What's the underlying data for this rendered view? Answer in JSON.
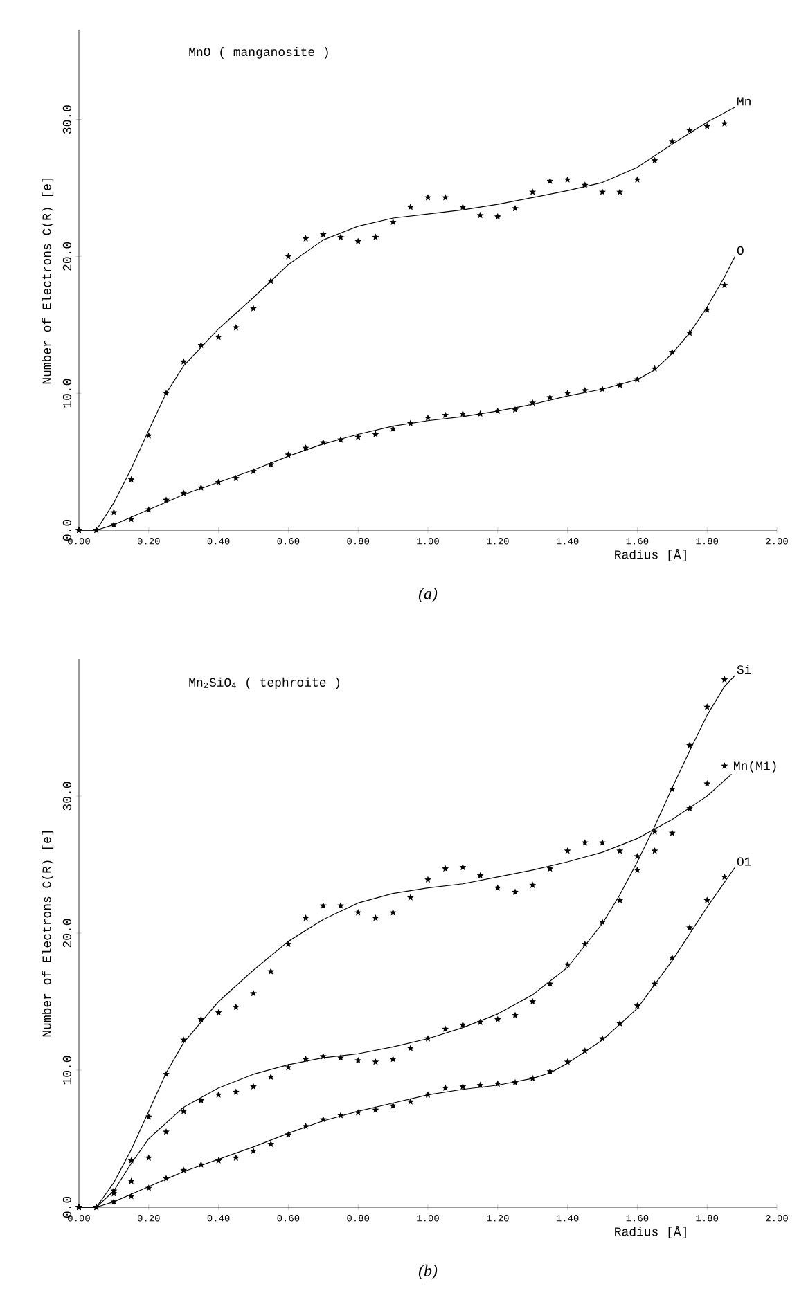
{
  "chart_data": [
    {
      "type": "line",
      "title": "MnO ( manganosite )",
      "xlabel": "Radius [Å]",
      "ylabel": "Number of Electrons C(R) [e]",
      "annotations": [
        "(a)"
      ],
      "xlim": [
        0,
        2
      ],
      "ylim": [
        0,
        36.5
      ],
      "xticks": [
        {
          "value": 0,
          "label": "0.00"
        },
        {
          "value": 0.2,
          "label": "0.20"
        },
        {
          "value": 0.4,
          "label": "0.40"
        },
        {
          "value": 0.6,
          "label": "0.60"
        },
        {
          "value": 0.8,
          "label": "0.80"
        },
        {
          "value": 1.0,
          "label": "1.00"
        },
        {
          "value": 1.2,
          "label": "1.20"
        },
        {
          "value": 1.4,
          "label": "1.40"
        },
        {
          "value": 1.6,
          "label": "1.60"
        },
        {
          "value": 1.8,
          "label": "1.80"
        },
        {
          "value": 2.0,
          "label": "2.00"
        }
      ],
      "yticks": [
        {
          "value": 0,
          "label": "0.0"
        },
        {
          "value": 10,
          "label": "10.0"
        },
        {
          "value": 20,
          "label": "20.0"
        },
        {
          "value": 30,
          "label": "30.0"
        }
      ],
      "marker": "star",
      "series": [
        {
          "name": "Mn",
          "marker": "none",
          "color": "#000000",
          "x": [
            0,
            0.05,
            0.1,
            0.15,
            0.2,
            0.25,
            0.3,
            0.4,
            0.5,
            0.6,
            0.7,
            0.8,
            0.9,
            1.0,
            1.1,
            1.2,
            1.3,
            1.4,
            1.5,
            1.6,
            1.7,
            1.8,
            1.88
          ],
          "values": [
            0,
            0,
            2,
            4.5,
            7.3,
            10,
            12,
            14.7,
            17,
            19.4,
            21.2,
            22.2,
            22.8,
            23.1,
            23.4,
            23.8,
            24.3,
            24.8,
            25.4,
            26.5,
            28.2,
            29.8,
            30.9
          ]
        },
        {
          "type": "scatter",
          "color": "#000000",
          "x": [
            0,
            0.05,
            0.1,
            0.15,
            0.2,
            0.25,
            0.3,
            0.35,
            0.4,
            0.45,
            0.5,
            0.55,
            0.6,
            0.65,
            0.7,
            0.75,
            0.8,
            0.85,
            0.9,
            0.95,
            1.0,
            1.05,
            1.1,
            1.15,
            1.2,
            1.25,
            1.3,
            1.35,
            1.4,
            1.45,
            1.5,
            1.55,
            1.6,
            1.65,
            1.7,
            1.75,
            1.8,
            1.85
          ],
          "values": [
            0,
            0,
            1.3,
            3.7,
            6.9,
            10.0,
            12.3,
            13.5,
            14.1,
            14.8,
            16.2,
            18.2,
            20.0,
            21.3,
            21.6,
            21.4,
            21.1,
            21.4,
            22.5,
            23.6,
            24.3,
            24.3,
            23.6,
            23.0,
            22.9,
            23.5,
            24.7,
            25.5,
            25.6,
            25.2,
            24.7,
            24.7,
            25.6,
            27.0,
            28.4,
            29.2,
            29.5,
            29.7
          ]
        },
        {
          "name": "O",
          "marker": "none",
          "color": "#000000",
          "x": [
            0,
            0.05,
            0.1,
            0.2,
            0.3,
            0.4,
            0.5,
            0.6,
            0.7,
            0.8,
            0.9,
            1.0,
            1.1,
            1.2,
            1.3,
            1.4,
            1.5,
            1.6,
            1.65,
            1.7,
            1.75,
            1.8,
            1.85,
            1.88
          ],
          "values": [
            0,
            0,
            0.4,
            1.5,
            2.6,
            3.5,
            4.4,
            5.4,
            6.3,
            7.0,
            7.6,
            8.0,
            8.3,
            8.7,
            9.2,
            9.8,
            10.3,
            11.0,
            11.7,
            12.9,
            14.4,
            16.3,
            18.5,
            20.0
          ]
        },
        {
          "type": "scatter",
          "color": "#000000",
          "x": [
            0,
            0.05,
            0.1,
            0.15,
            0.2,
            0.25,
            0.3,
            0.35,
            0.4,
            0.45,
            0.5,
            0.55,
            0.6,
            0.65,
            0.7,
            0.75,
            0.8,
            0.85,
            0.9,
            0.95,
            1.0,
            1.05,
            1.1,
            1.15,
            1.2,
            1.25,
            1.3,
            1.35,
            1.4,
            1.45,
            1.5,
            1.55,
            1.6,
            1.65,
            1.7,
            1.75,
            1.8,
            1.85
          ],
          "values": [
            0,
            0,
            0.4,
            0.8,
            1.5,
            2.2,
            2.7,
            3.1,
            3.5,
            3.8,
            4.3,
            4.8,
            5.5,
            6.0,
            6.4,
            6.6,
            6.8,
            7.0,
            7.4,
            7.8,
            8.2,
            8.4,
            8.5,
            8.5,
            8.7,
            8.8,
            9.3,
            9.7,
            10.0,
            10.2,
            10.3,
            10.6,
            11.0,
            11.8,
            13.0,
            14.4,
            16.1,
            17.9
          ]
        }
      ]
    },
    {
      "type": "line",
      "title": "Mn$_{2}$SiO$_{4}$ ( tephroite )",
      "xlabel": "Radius [Å]",
      "ylabel": "Number of Electrons C(R) [e]",
      "annotations": [
        "(b)"
      ],
      "xlim": [
        0,
        2
      ],
      "ylim": [
        0,
        40
      ],
      "xticks": [
        {
          "value": 0,
          "label": "0.00"
        },
        {
          "value": 0.2,
          "label": "0.20"
        },
        {
          "value": 0.4,
          "label": "0.40"
        },
        {
          "value": 0.6,
          "label": "0.60"
        },
        {
          "value": 0.8,
          "label": "0.80"
        },
        {
          "value": 1.0,
          "label": "1.00"
        },
        {
          "value": 1.2,
          "label": "1.20"
        },
        {
          "value": 1.4,
          "label": "1.40"
        },
        {
          "value": 1.6,
          "label": "1.60"
        },
        {
          "value": 1.8,
          "label": "1.80"
        },
        {
          "value": 2.0,
          "label": "2.00"
        }
      ],
      "yticks": [
        {
          "value": 0,
          "label": "0.0"
        },
        {
          "value": 10,
          "label": "10.0"
        },
        {
          "value": 20,
          "label": "20.0"
        },
        {
          "value": 30,
          "label": "30.0"
        }
      ],
      "marker": "star",
      "series": [
        {
          "name": "Si",
          "marker": "none",
          "color": "#000000",
          "x": [
            0,
            0.05,
            0.1,
            0.15,
            0.2,
            0.3,
            0.4,
            0.5,
            0.6,
            0.7,
            0.8,
            0.9,
            1.0,
            1.1,
            1.2,
            1.3,
            1.4,
            1.5,
            1.55,
            1.6,
            1.65,
            1.7,
            1.75,
            1.8,
            1.85,
            1.88
          ],
          "values": [
            0,
            0,
            1.2,
            3.2,
            5.0,
            7.3,
            8.7,
            9.7,
            10.4,
            10.9,
            11.2,
            11.7,
            12.3,
            13.1,
            14.1,
            15.5,
            17.5,
            20.7,
            22.8,
            25.2,
            27.8,
            30.6,
            33.3,
            35.9,
            38.0,
            38.8
          ]
        },
        {
          "type": "scatter",
          "color": "#000000",
          "x": [
            0,
            0.05,
            0.1,
            0.15,
            0.2,
            0.25,
            0.3,
            0.35,
            0.4,
            0.45,
            0.5,
            0.55,
            0.6,
            0.65,
            0.7,
            0.75,
            0.8,
            0.85,
            0.9,
            0.95,
            1.0,
            1.05,
            1.1,
            1.15,
            1.2,
            1.25,
            1.3,
            1.35,
            1.4,
            1.45,
            1.5,
            1.55,
            1.6,
            1.65,
            1.7,
            1.75,
            1.8,
            1.85
          ],
          "values": [
            0,
            0,
            1.0,
            1.9,
            3.6,
            5.5,
            7.0,
            7.8,
            8.2,
            8.4,
            8.8,
            9.5,
            10.2,
            10.8,
            11.0,
            10.9,
            10.7,
            10.6,
            10.8,
            11.6,
            12.3,
            13.0,
            13.3,
            13.5,
            13.7,
            14.0,
            15.0,
            16.3,
            17.7,
            19.2,
            20.8,
            22.4,
            24.6,
            27.4,
            30.5,
            33.7,
            36.5,
            38.5
          ]
        },
        {
          "name": "Mn(M1)",
          "marker": "none",
          "color": "#000000",
          "x": [
            0,
            0.05,
            0.1,
            0.15,
            0.2,
            0.25,
            0.3,
            0.4,
            0.5,
            0.6,
            0.7,
            0.8,
            0.9,
            1.0,
            1.1,
            1.2,
            1.3,
            1.4,
            1.5,
            1.6,
            1.7,
            1.8,
            1.87
          ],
          "values": [
            0,
            0,
            1.8,
            4.2,
            7,
            9.8,
            12,
            15,
            17.3,
            19.4,
            21,
            22.2,
            22.9,
            23.3,
            23.6,
            24.1,
            24.6,
            25.2,
            25.9,
            26.9,
            28.3,
            30.0,
            31.6
          ]
        },
        {
          "type": "scatter",
          "color": "#000000",
          "x": [
            0,
            0.05,
            0.1,
            0.15,
            0.2,
            0.25,
            0.3,
            0.35,
            0.4,
            0.45,
            0.5,
            0.55,
            0.6,
            0.65,
            0.7,
            0.75,
            0.8,
            0.85,
            0.9,
            0.95,
            1.0,
            1.05,
            1.1,
            1.15,
            1.2,
            1.25,
            1.3,
            1.35,
            1.4,
            1.45,
            1.5,
            1.55,
            1.6,
            1.65,
            1.7,
            1.75,
            1.8,
            1.85
          ],
          "values": [
            0,
            0,
            1.2,
            3.4,
            6.6,
            9.7,
            12.2,
            13.7,
            14.2,
            14.6,
            15.6,
            17.2,
            19.2,
            21.1,
            22.0,
            22.0,
            21.5,
            21.1,
            21.5,
            22.6,
            23.9,
            24.7,
            24.8,
            24.2,
            23.3,
            23.0,
            23.5,
            24.7,
            26.0,
            26.6,
            26.6,
            26.0,
            25.6,
            26.0,
            27.3,
            29.1,
            30.9,
            32.2
          ]
        },
        {
          "name": "O1",
          "marker": "none",
          "color": "#000000",
          "x": [
            0,
            0.05,
            0.1,
            0.2,
            0.3,
            0.4,
            0.5,
            0.6,
            0.7,
            0.8,
            0.9,
            1.0,
            1.1,
            1.2,
            1.3,
            1.35,
            1.4,
            1.5,
            1.6,
            1.7,
            1.8,
            1.88
          ],
          "values": [
            0,
            0,
            0.4,
            1.5,
            2.6,
            3.5,
            4.4,
            5.4,
            6.3,
            7.0,
            7.6,
            8.2,
            8.6,
            8.9,
            9.4,
            9.8,
            10.5,
            12.2,
            14.5,
            18,
            21.9,
            24.8
          ]
        },
        {
          "type": "scatter",
          "color": "#000000",
          "x": [
            0,
            0.05,
            0.1,
            0.15,
            0.2,
            0.25,
            0.3,
            0.35,
            0.4,
            0.45,
            0.5,
            0.55,
            0.6,
            0.65,
            0.7,
            0.75,
            0.8,
            0.85,
            0.9,
            0.95,
            1.0,
            1.05,
            1.1,
            1.15,
            1.2,
            1.25,
            1.3,
            1.35,
            1.4,
            1.45,
            1.5,
            1.55,
            1.6,
            1.65,
            1.7,
            1.75,
            1.8,
            1.85
          ],
          "values": [
            0,
            0,
            0.4,
            0.8,
            1.4,
            2.1,
            2.7,
            3.1,
            3.4,
            3.6,
            4.1,
            4.6,
            5.3,
            5.9,
            6.4,
            6.7,
            6.9,
            7.1,
            7.4,
            7.7,
            8.2,
            8.7,
            8.8,
            8.9,
            9.0,
            9.1,
            9.4,
            9.9,
            10.6,
            11.4,
            12.3,
            13.4,
            14.7,
            16.3,
            18.2,
            20.4,
            22.4,
            24.1
          ]
        }
      ]
    }
  ]
}
